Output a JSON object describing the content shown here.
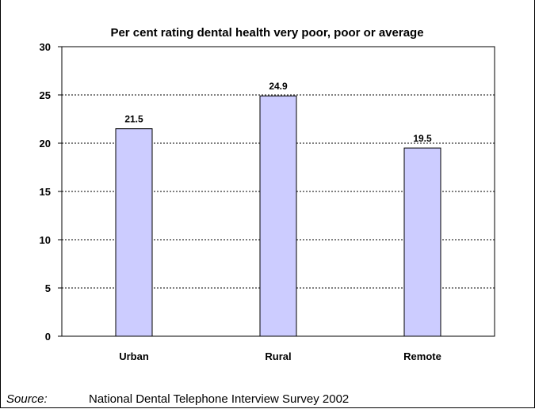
{
  "chart_data": {
    "type": "bar",
    "title": "Per cent rating dental health very poor, poor or average",
    "categories": [
      "Urban",
      "Rural",
      "Remote"
    ],
    "values": [
      21.5,
      24.9,
      19.5
    ],
    "data_labels": [
      "21.5",
      "24.9",
      "19.5"
    ],
    "ylim": [
      0,
      30
    ],
    "yticks": [
      0,
      5,
      10,
      15,
      20,
      25,
      30
    ],
    "grid": "horizontal-dotted",
    "legend": "none",
    "bar_color": "#ccccff"
  },
  "source": {
    "label": "Source:",
    "text": "National Dental Telephone Interview Survey 2002"
  }
}
